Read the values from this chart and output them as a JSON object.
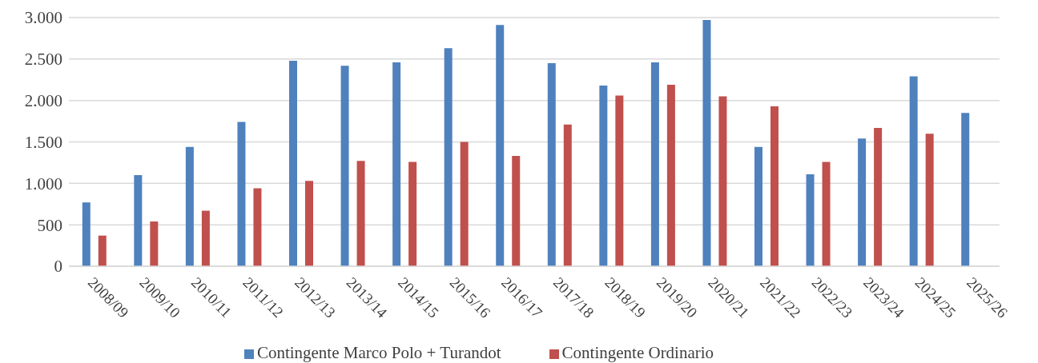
{
  "chart_data": {
    "type": "bar",
    "categories": [
      "2008/09",
      "2009/10",
      "2010/11",
      "2011/12",
      "2012/13",
      "2013/14",
      "2014/15",
      "2015/16",
      "2016/17",
      "2017/18",
      "2018/19",
      "2019/20",
      "2020/21",
      "2021/22",
      "2022/23",
      "2023/24",
      "2024/25",
      "2025/26"
    ],
    "series": [
      {
        "name": "Contingente Marco Polo + Turandot",
        "color": "#4f81bd",
        "values": [
          770,
          1100,
          1440,
          1740,
          2480,
          2420,
          2460,
          2630,
          2910,
          2450,
          2180,
          2460,
          2970,
          1440,
          1110,
          1540,
          2290,
          1850
        ]
      },
      {
        "name": "Contingente Ordinario",
        "color": "#c0504d",
        "values": [
          370,
          540,
          670,
          940,
          1030,
          1270,
          1260,
          1500,
          1330,
          1710,
          2060,
          2190,
          2050,
          1930,
          1260,
          1670,
          1600,
          null
        ]
      }
    ],
    "ylim": [
      0,
      3000
    ],
    "yticks": [
      0,
      {
        "value": 500,
        "label": "500"
      },
      {
        "value": 1000,
        "label": "1.000"
      },
      {
        "value": 1500,
        "label": "1.500"
      },
      {
        "value": 2000,
        "label": "2.000"
      },
      {
        "value": 2500,
        "label": "2.500"
      },
      {
        "value": 3000,
        "label": "3.000"
      }
    ],
    "grid": "y",
    "legend": "bottom"
  }
}
